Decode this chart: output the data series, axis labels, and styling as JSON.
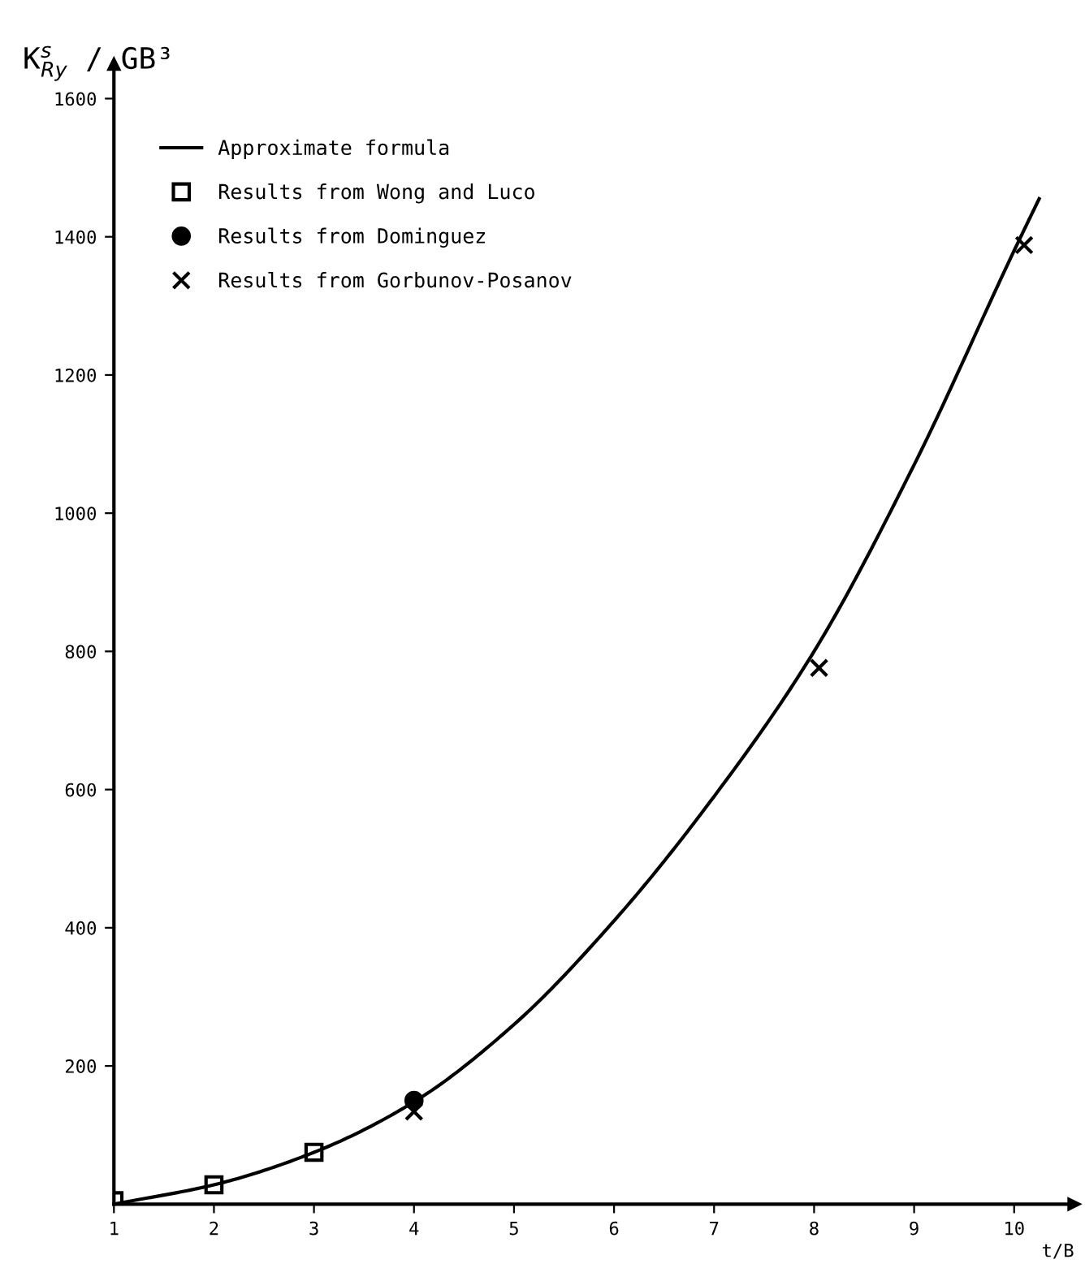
{
  "chart_data": {
    "type": "line",
    "xlabel": "t/B",
    "ylabel": "K$^{s}$$_{Ry}$ / GB³",
    "xlim": [
      1,
      10.6
    ],
    "xticks": [
      1,
      2,
      3,
      4,
      5,
      6,
      7,
      8,
      9,
      10
    ],
    "ylim": [
      0,
      1650
    ],
    "yticks": [
      200,
      400,
      600,
      800,
      1000,
      1200,
      1400,
      1600
    ],
    "grid": false,
    "legend": "top left",
    "series": [
      {
        "name": "Approximate formula",
        "color": "#000000",
        "marker": "none",
        "line_style": "solid",
        "x": [
          1,
          2,
          3,
          4,
          5,
          6,
          7,
          8,
          9,
          10,
          10.25
        ],
        "values": [
          0,
          28,
          75,
          148,
          260,
          410,
          590,
          800,
          1070,
          1380,
          1455
        ]
      },
      {
        "name": "Results from Wong and Luco",
        "type": "scatter",
        "color": "#000000",
        "marker": "square",
        "x": [
          1,
          2,
          3
        ],
        "values": [
          5,
          28,
          75
        ]
      },
      {
        "name": "Results from Dominguez",
        "type": "scatter",
        "color": "#000000",
        "marker": "circle",
        "x": [
          4
        ],
        "values": [
          150
        ]
      },
      {
        "name": "Results from Gorbunov-Posanov",
        "type": "scatter",
        "color": "#000000",
        "marker": "cross",
        "x": [
          4,
          8.05,
          10.1
        ],
        "values": [
          134,
          776,
          1388
        ]
      }
    ]
  }
}
